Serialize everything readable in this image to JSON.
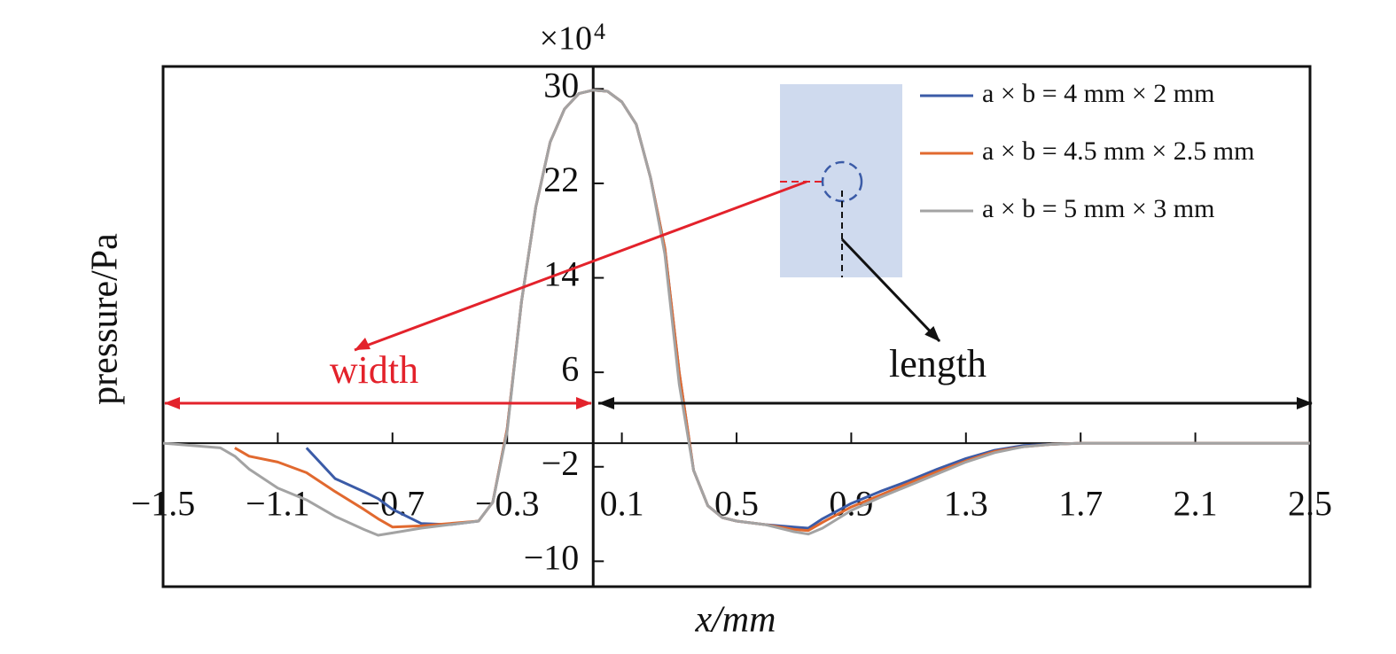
{
  "chart_data": {
    "type": "line",
    "multiplier": {
      "base": "×10",
      "exponent": "4"
    },
    "ylabel": "pressure/Pa",
    "xlabel": "x/mm",
    "annotations": {
      "width": "width",
      "length": "length"
    },
    "xlim": [
      -1.5,
      2.5
    ],
    "ylim": [
      -12.15,
      31.9
    ],
    "xticks": [
      {
        "value": -1.5,
        "label": "−1.5"
      },
      {
        "value": -1.1,
        "label": "−1.1"
      },
      {
        "value": -0.7,
        "label": "−0.7"
      },
      {
        "value": -0.3,
        "label": "−0.3"
      },
      0.1,
      0.5,
      0.9,
      1.3,
      1.7,
      2.1,
      2.5
    ],
    "yticks": [
      {
        "value": -10,
        "label": "−10"
      },
      {
        "value": -2,
        "label": "−2"
      },
      6,
      14,
      22,
      30
    ],
    "x": [
      -1.5,
      -1.4,
      -1.3,
      -1.25,
      -1.2,
      -1.1,
      -1.0,
      -0.9,
      -0.8,
      -0.75,
      -0.7,
      -0.6,
      -0.5,
      -0.4,
      -0.35,
      -0.3,
      -0.25,
      -0.2,
      -0.15,
      -0.1,
      -0.05,
      0,
      0.05,
      0.1,
      0.15,
      0.2,
      0.25,
      0.3,
      0.35,
      0.4,
      0.45,
      0.5,
      0.6,
      0.7,
      0.75,
      0.8,
      0.9,
      1.0,
      1.1,
      1.2,
      1.3,
      1.4,
      1.5,
      1.6,
      1.7,
      2.1,
      2.5
    ],
    "series": [
      {
        "name": "a × b = 4 mm × 2 mm",
        "color": "#3b5ba7",
        "values": [
          null,
          null,
          null,
          null,
          null,
          null,
          -0.4,
          -3,
          -4.1,
          -4.7,
          -5.6,
          -6.8,
          -6.9,
          -6.6,
          -5,
          1.2,
          12,
          20,
          25.5,
          28.3,
          29.6,
          29.9,
          29.8,
          28.9,
          27,
          22.5,
          16.5,
          6,
          -2.3,
          -5.3,
          -6.3,
          -6.6,
          -6.9,
          -7.1,
          -7.2,
          -6.4,
          -5.1,
          -4.1,
          -3.2,
          -2.2,
          -1.3,
          -0.6,
          -0.2,
          -0.1,
          0,
          0,
          0
        ]
      },
      {
        "name": "a × b = 4.5 mm × 2.5 mm",
        "color": "#e1692f",
        "values": [
          null,
          null,
          null,
          -0.4,
          -1.1,
          -1.6,
          -2.5,
          -4.1,
          -5.6,
          -6.4,
          -7.1,
          -7.0,
          -6.8,
          -6.6,
          -5,
          1.2,
          12,
          20,
          25.5,
          28.3,
          29.6,
          29.9,
          29.8,
          28.9,
          27,
          22.5,
          16.5,
          6,
          -2.3,
          -5.3,
          -6.3,
          -6.6,
          -6.9,
          -7.3,
          -7.4,
          -6.7,
          -5.4,
          -4.4,
          -3.4,
          -2.4,
          -1.5,
          -0.7,
          -0.3,
          -0.1,
          0,
          0,
          0
        ]
      },
      {
        "name": "a × b = 5 mm × 3 mm",
        "color": "#a3a3a3",
        "values": [
          0,
          -0.2,
          -0.4,
          -1.1,
          -2.2,
          -3.8,
          -4.8,
          -6.2,
          -7.3,
          -7.8,
          -7.6,
          -7.2,
          -6.9,
          -6.6,
          -5,
          1,
          12,
          20,
          25.5,
          28.3,
          29.6,
          29.9,
          29.8,
          28.9,
          27,
          22.5,
          16,
          5,
          -2.3,
          -5.3,
          -6.3,
          -6.6,
          -6.9,
          -7.5,
          -7.7,
          -7.2,
          -5.7,
          -4.6,
          -3.6,
          -2.6,
          -1.6,
          -0.8,
          -0.3,
          -0.1,
          0,
          0,
          0
        ]
      }
    ]
  }
}
